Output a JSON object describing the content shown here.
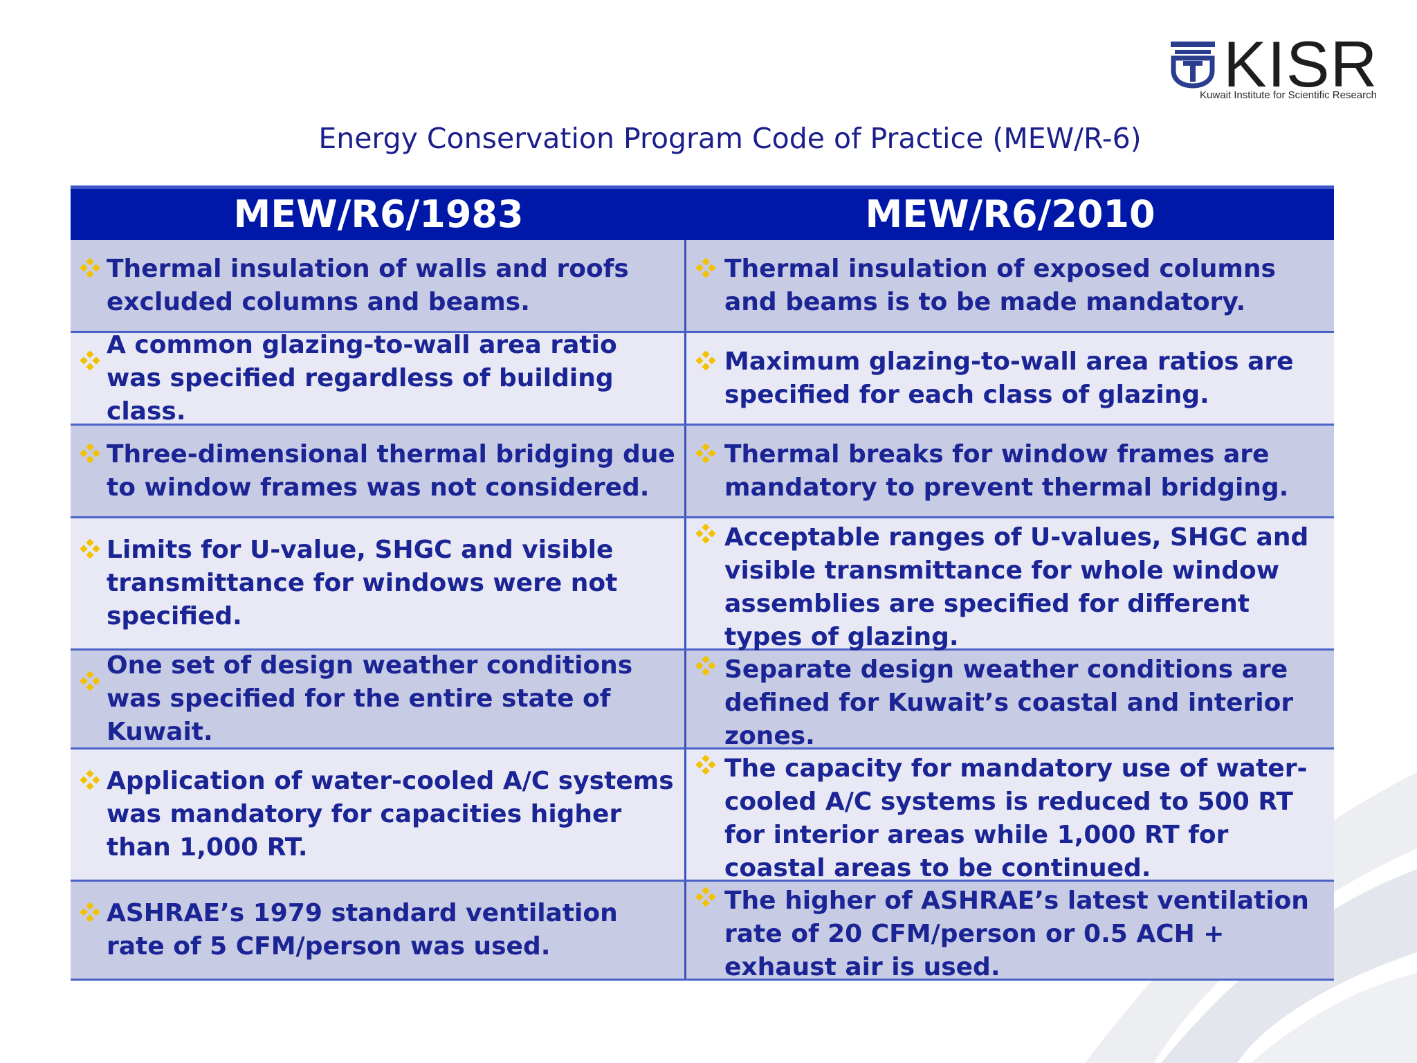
{
  "logo": {
    "name": "KISR",
    "subtitle": "Kuwait Institute for Scientific Research",
    "icon": "kisr-logo-icon"
  },
  "title": "Energy Conservation Program Code of Practice (MEW/R-6)",
  "table": {
    "headers": [
      "MEW/R6/1983",
      "MEW/R6/2010"
    ],
    "bullet_icon": "diamond-bullet-icon",
    "colors": {
      "header_bg": "#0018a8",
      "row_dark": "#c8cbe4",
      "row_light": "#e8e9f4",
      "text": "#1a2494",
      "bullet": "#f2c200"
    },
    "rows": [
      {
        "old": "Thermal insulation of walls and roofs excluded columns and beams.",
        "new": "Thermal insulation of exposed columns and beams is to be made mandatory."
      },
      {
        "old": "A common glazing-to-wall area ratio was specified regardless of building class.",
        "new": "Maximum glazing-to-wall area ratios are specified for each class of glazing."
      },
      {
        "old": "Three-dimensional thermal bridging due to window frames was not considered.",
        "new": "Thermal breaks for window frames are mandatory to prevent thermal bridging."
      },
      {
        "old": "Limits for U-value, SHGC and visible transmittance for windows were not specified.",
        "new": "Acceptable ranges of U-values, SHGC and visible transmittance for whole window assemblies are specified for different types of glazing."
      },
      {
        "old": "One set of design weather conditions was specified for the entire state of Kuwait.",
        "new": "Separate design weather conditions are defined for Kuwait’s coastal and interior zones."
      },
      {
        "old": "Application of water-cooled A/C systems was mandatory for capacities higher than 1,000 RT.",
        "new": "The capacity for mandatory use of water-cooled A/C systems is reduced to 500 RT for interior areas while 1,000 RT for coastal areas to be continued."
      },
      {
        "old": "ASHRAE’s 1979 standard ventilation rate of 5 CFM/person was used.",
        "new": "The higher of ASHRAE’s latest ventilation rate of 20 CFM/person or 0.5 ACH + exhaust air is used."
      }
    ]
  }
}
